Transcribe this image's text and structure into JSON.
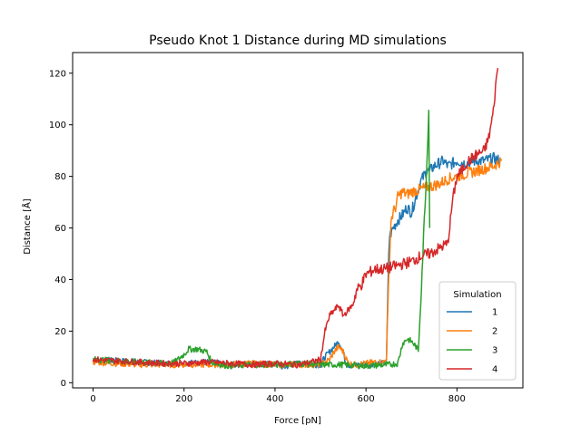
{
  "chart_data": {
    "type": "line",
    "title": "Pseudo Knot 1 Distance during MD simulations",
    "xlabel": "Force [pN]",
    "ylabel": "Distance [Å]",
    "xlim": [
      -45,
      945
    ],
    "ylim": [
      -2,
      128
    ],
    "xticks": [
      0,
      200,
      400,
      600,
      800
    ],
    "yticks": [
      0,
      20,
      40,
      60,
      80,
      100,
      120
    ],
    "grid": false,
    "legend": {
      "title": "Simulation",
      "placement": "lower-right"
    },
    "series": [
      {
        "name": "1",
        "color": "#1f77b4",
        "x": [
          0,
          50,
          100,
          150,
          200,
          250,
          300,
          350,
          400,
          420,
          450,
          480,
          500,
          510,
          530,
          540,
          550,
          555,
          560,
          570,
          580,
          600,
          620,
          640,
          645,
          650,
          652,
          655,
          660,
          670,
          680,
          690,
          700,
          710,
          720,
          730,
          735,
          740,
          750,
          760,
          770,
          780,
          790,
          800,
          820,
          840,
          860,
          880,
          895
        ],
        "y": [
          9,
          8.5,
          8,
          7.5,
          7.5,
          8,
          7,
          7.5,
          7,
          6,
          7.5,
          7,
          7,
          10,
          14,
          16,
          12,
          8,
          7,
          6.5,
          7,
          7,
          7.5,
          7.5,
          8,
          50,
          57,
          58,
          60,
          63,
          65,
          68,
          66,
          72,
          78,
          81,
          83,
          82,
          84,
          85,
          86,
          84,
          85,
          86,
          85,
          86,
          86,
          87,
          86
        ]
      },
      {
        "name": "2",
        "color": "#ff7f0e",
        "x": [
          0,
          50,
          100,
          150,
          200,
          250,
          300,
          350,
          400,
          450,
          500,
          520,
          530,
          540,
          550,
          560,
          570,
          580,
          600,
          620,
          640,
          645,
          650,
          655,
          660,
          665,
          670,
          680,
          690,
          700,
          720,
          740,
          760,
          780,
          800,
          820,
          840,
          860,
          880,
          898
        ],
        "y": [
          8,
          7.5,
          7,
          7,
          7,
          7,
          7,
          7.5,
          7,
          7,
          7,
          9,
          12,
          14,
          12,
          8,
          7,
          7,
          7.5,
          8,
          8,
          10,
          40,
          63,
          66,
          68,
          72,
          74,
          73,
          74,
          75,
          76,
          77,
          79,
          80,
          81,
          82,
          83,
          84,
          86
        ]
      },
      {
        "name": "3",
        "color": "#2ca02c",
        "x": [
          0,
          50,
          100,
          150,
          180,
          200,
          210,
          230,
          250,
          260,
          280,
          300,
          350,
          400,
          450,
          500,
          550,
          600,
          650,
          670,
          680,
          690,
          700,
          710,
          715,
          720,
          725,
          730,
          735,
          738,
          740
        ],
        "y": [
          9,
          8.5,
          8,
          7.5,
          8,
          11,
          13,
          13,
          12,
          8,
          7,
          6.5,
          7,
          7,
          7.5,
          7,
          7,
          6.5,
          7,
          7.5,
          15,
          17,
          16,
          14,
          12,
          30,
          50,
          70,
          90,
          107,
          60
        ]
      },
      {
        "name": "4",
        "color": "#d62728",
        "x": [
          0,
          50,
          100,
          150,
          200,
          250,
          300,
          350,
          400,
          450,
          480,
          500,
          510,
          520,
          530,
          540,
          550,
          560,
          570,
          580,
          590,
          600,
          610,
          620,
          640,
          660,
          680,
          700,
          720,
          740,
          760,
          780,
          790,
          795,
          800,
          810,
          820,
          840,
          860,
          870,
          880,
          885,
          890
        ],
        "y": [
          9,
          8.5,
          8,
          7.5,
          7.5,
          8,
          7.5,
          7,
          7.5,
          7,
          8,
          9,
          20,
          26,
          28,
          30,
          26,
          28,
          30,
          36,
          38,
          42,
          43,
          44,
          44,
          45,
          46,
          47,
          49,
          50,
          52,
          54,
          70,
          75,
          80,
          82,
          85,
          88,
          90,
          95,
          105,
          115,
          122
        ]
      }
    ]
  }
}
